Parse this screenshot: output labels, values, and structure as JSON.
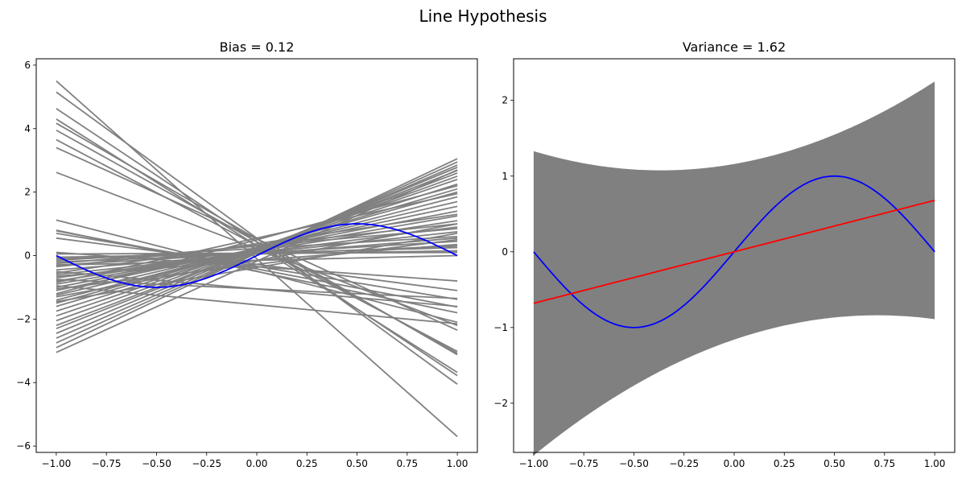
{
  "figure": {
    "title": "Line Hypothesis"
  },
  "chart_data": [
    {
      "type": "line",
      "title": "Bias = 0.12",
      "xlabel": "",
      "ylabel": "",
      "xlim": [
        -1.1,
        1.1
      ],
      "ylim": [
        -6.2,
        6.2
      ],
      "xticks": [
        -1.0,
        -0.75,
        -0.5,
        -0.25,
        0.0,
        0.25,
        0.5,
        0.75,
        1.0
      ],
      "xtick_labels": [
        "−1.00",
        "−0.75",
        "−0.50",
        "−0.25",
        "0.00",
        "0.25",
        "0.50",
        "0.75",
        "1.00"
      ],
      "yticks": [
        -6,
        -4,
        -2,
        0,
        2,
        4,
        6
      ],
      "ytick_labels": [
        "−6",
        "−4",
        "−2",
        "0",
        "2",
        "4",
        "6"
      ],
      "grid": false,
      "target": {
        "function": "sin(pi*x)",
        "color": "#0000ff",
        "x_range": [
          -1,
          1
        ]
      },
      "hypotheses": {
        "color": "#808080",
        "lines": [
          [
            5.5,
            -5.7
          ],
          [
            5.15,
            -4.05
          ],
          [
            4.63,
            -3.78
          ],
          [
            4.3,
            -3.68
          ],
          [
            4.17,
            -3.12
          ],
          [
            3.95,
            -3.08
          ],
          [
            3.65,
            -3.02
          ],
          [
            3.4,
            -2.35
          ],
          [
            2.62,
            -2.2
          ],
          [
            1.12,
            -2.1
          ],
          [
            0.8,
            -1.8
          ],
          [
            0.78,
            -1.62
          ],
          [
            0.7,
            -1.38
          ],
          [
            0.55,
            -1.1
          ],
          [
            0.1,
            -0.8
          ],
          [
            0.05,
            0.1
          ],
          [
            -0.05,
            0.15
          ],
          [
            -0.1,
            0.25
          ],
          [
            -0.2,
            0.3
          ],
          [
            -0.3,
            0.45
          ],
          [
            -0.45,
            0.55
          ],
          [
            -0.6,
            0.75
          ],
          [
            -0.7,
            0.9
          ],
          [
            -0.8,
            1.1
          ],
          [
            -0.9,
            1.25
          ],
          [
            -1.0,
            1.4
          ],
          [
            -1.1,
            1.55
          ],
          [
            -1.25,
            1.7
          ],
          [
            -1.4,
            1.85
          ],
          [
            -1.5,
            2.0
          ],
          [
            -1.6,
            2.1
          ],
          [
            -1.75,
            2.25
          ],
          [
            -1.9,
            2.4
          ],
          [
            -2.05,
            2.5
          ],
          [
            -2.2,
            2.6
          ],
          [
            -2.3,
            2.68
          ],
          [
            -2.45,
            2.78
          ],
          [
            -2.6,
            2.85
          ],
          [
            -2.75,
            2.95
          ],
          [
            -2.9,
            3.05
          ],
          [
            -3.05,
            2.7
          ],
          [
            -0.15,
            0.6
          ],
          [
            -0.35,
            1.0
          ],
          [
            -0.55,
            1.3
          ],
          [
            -0.25,
            0.85
          ],
          [
            -0.85,
            1.95
          ],
          [
            -1.2,
            2.2
          ],
          [
            -0.65,
            0.35
          ],
          [
            -1.05,
            0.5
          ],
          [
            -1.45,
            0.7
          ],
          [
            -0.75,
            -1.35
          ],
          [
            -0.95,
            -2.15
          ],
          [
            -0.5,
            -1.6
          ],
          [
            -0.3,
            0.0
          ],
          [
            -1.3,
            1.0
          ]
        ]
      }
    },
    {
      "type": "area",
      "title": "Variance = 1.62",
      "xlabel": "",
      "ylabel": "",
      "xlim": [
        -1.1,
        1.1
      ],
      "ylim": [
        -2.65,
        2.55
      ],
      "xticks": [
        -1.0,
        -0.75,
        -0.5,
        -0.25,
        0.0,
        0.25,
        0.5,
        0.75,
        1.0
      ],
      "xtick_labels": [
        "−1.00",
        "−0.75",
        "−0.50",
        "−0.25",
        "0.00",
        "0.25",
        "0.50",
        "0.75",
        "1.00"
      ],
      "yticks": [
        -2,
        -1,
        0,
        1,
        2
      ],
      "ytick_labels": [
        "−2",
        "−1",
        "0",
        "1",
        "2"
      ],
      "grid": false,
      "target": {
        "function": "sin(pi*x)",
        "color": "#0000ff",
        "x_range": [
          -1,
          1
        ]
      },
      "mean_hypothesis": {
        "intercept": 0.0,
        "slope": 0.68,
        "color": "#ff0000"
      },
      "band": {
        "color": "#808080",
        "half_width_quadratic": [
          1.16,
          -0.22,
          0.63
        ]
      }
    }
  ]
}
